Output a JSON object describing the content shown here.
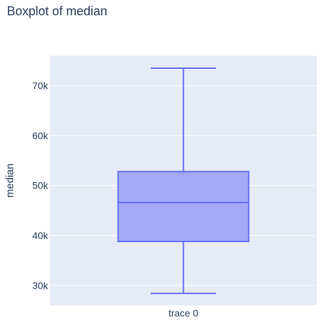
{
  "chart_data": {
    "type": "box",
    "title": "Boxplot of median",
    "xlabel": "",
    "ylabel": "median",
    "categories": [
      "trace 0"
    ],
    "series": [
      {
        "name": "trace 0",
        "min": 28400,
        "q1": 38800,
        "median": 46600,
        "q3": 52800,
        "max": 73500
      }
    ],
    "ylim": [
      26000,
      76000
    ],
    "yticks": [
      30000,
      40000,
      50000,
      60000,
      70000
    ],
    "ytick_labels": [
      "30k",
      "40k",
      "50k",
      "60k",
      "70k"
    ],
    "grid": true,
    "legend": "none",
    "colors": {
      "plot_bg": "#e5ecf6",
      "box_line": "#636efa",
      "box_fill": "#a3a9f7",
      "grid": "#ffffff",
      "text": "#2a3f5f"
    }
  }
}
